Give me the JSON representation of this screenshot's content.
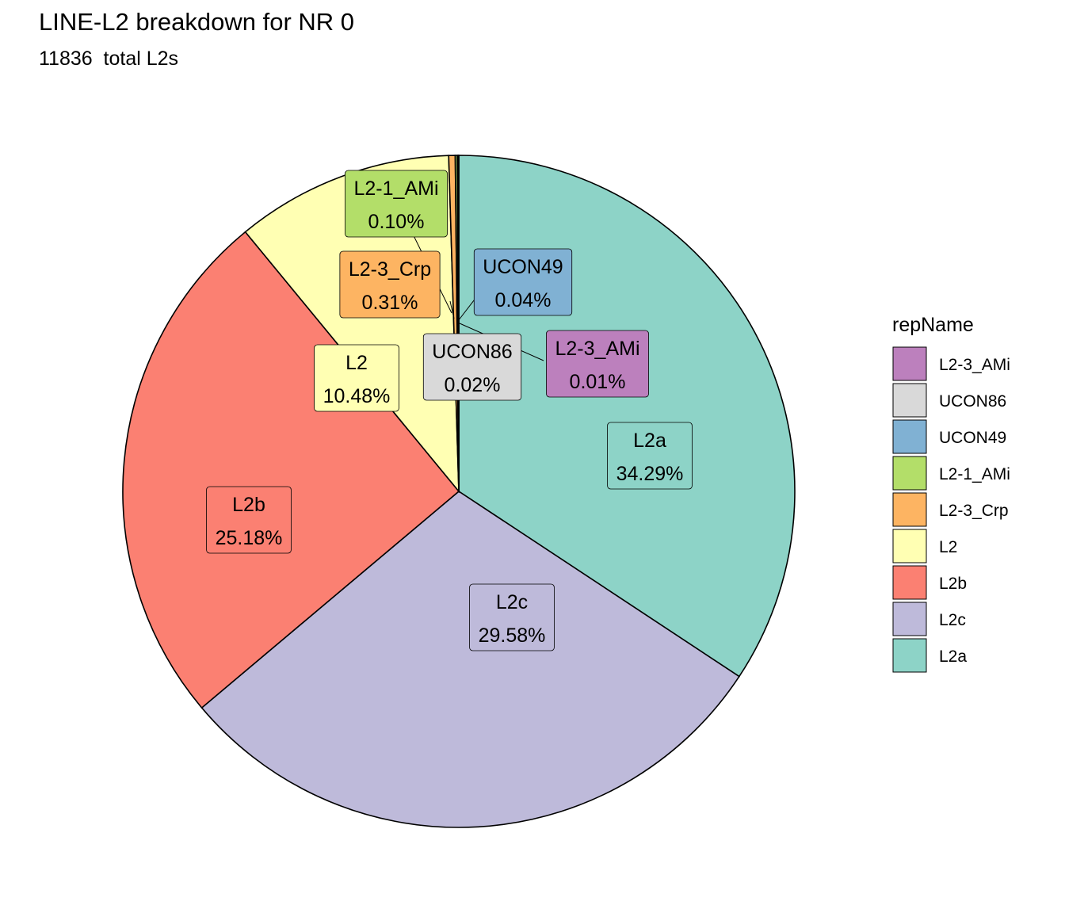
{
  "chart_data": {
    "type": "pie",
    "title": "LINE-L2 breakdown for NR 0",
    "subtitle": "11836  total L2s",
    "legend_title": "repName",
    "legend_position": "right",
    "slices": [
      {
        "name": "L2a",
        "value": 34.29,
        "label": "34.29%",
        "color": "#8DD3C7"
      },
      {
        "name": "L2c",
        "value": 29.58,
        "label": "29.58%",
        "color": "#BEBADA"
      },
      {
        "name": "L2b",
        "value": 25.18,
        "label": "25.18%",
        "color": "#FB8072"
      },
      {
        "name": "L2",
        "value": 10.48,
        "label": "10.48%",
        "color": "#FFFFB3"
      },
      {
        "name": "L2-3_Crp",
        "value": 0.31,
        "label": "0.31%",
        "color": "#FDB462"
      },
      {
        "name": "L2-1_AMi",
        "value": 0.1,
        "label": "0.10%",
        "color": "#B3DE69"
      },
      {
        "name": "UCON49",
        "value": 0.04,
        "label": "0.04%",
        "color": "#80B1D3"
      },
      {
        "name": "UCON86",
        "value": 0.02,
        "label": "0.02%",
        "color": "#D9D9D9"
      },
      {
        "name": "L2-3_AMi",
        "value": 0.01,
        "label": "0.01%",
        "color": "#BC80BD"
      }
    ],
    "legend_order": [
      "L2-3_AMi",
      "UCON86",
      "UCON49",
      "L2-1_AMi",
      "L2-3_Crp",
      "L2",
      "L2b",
      "L2c",
      "L2a"
    ]
  }
}
